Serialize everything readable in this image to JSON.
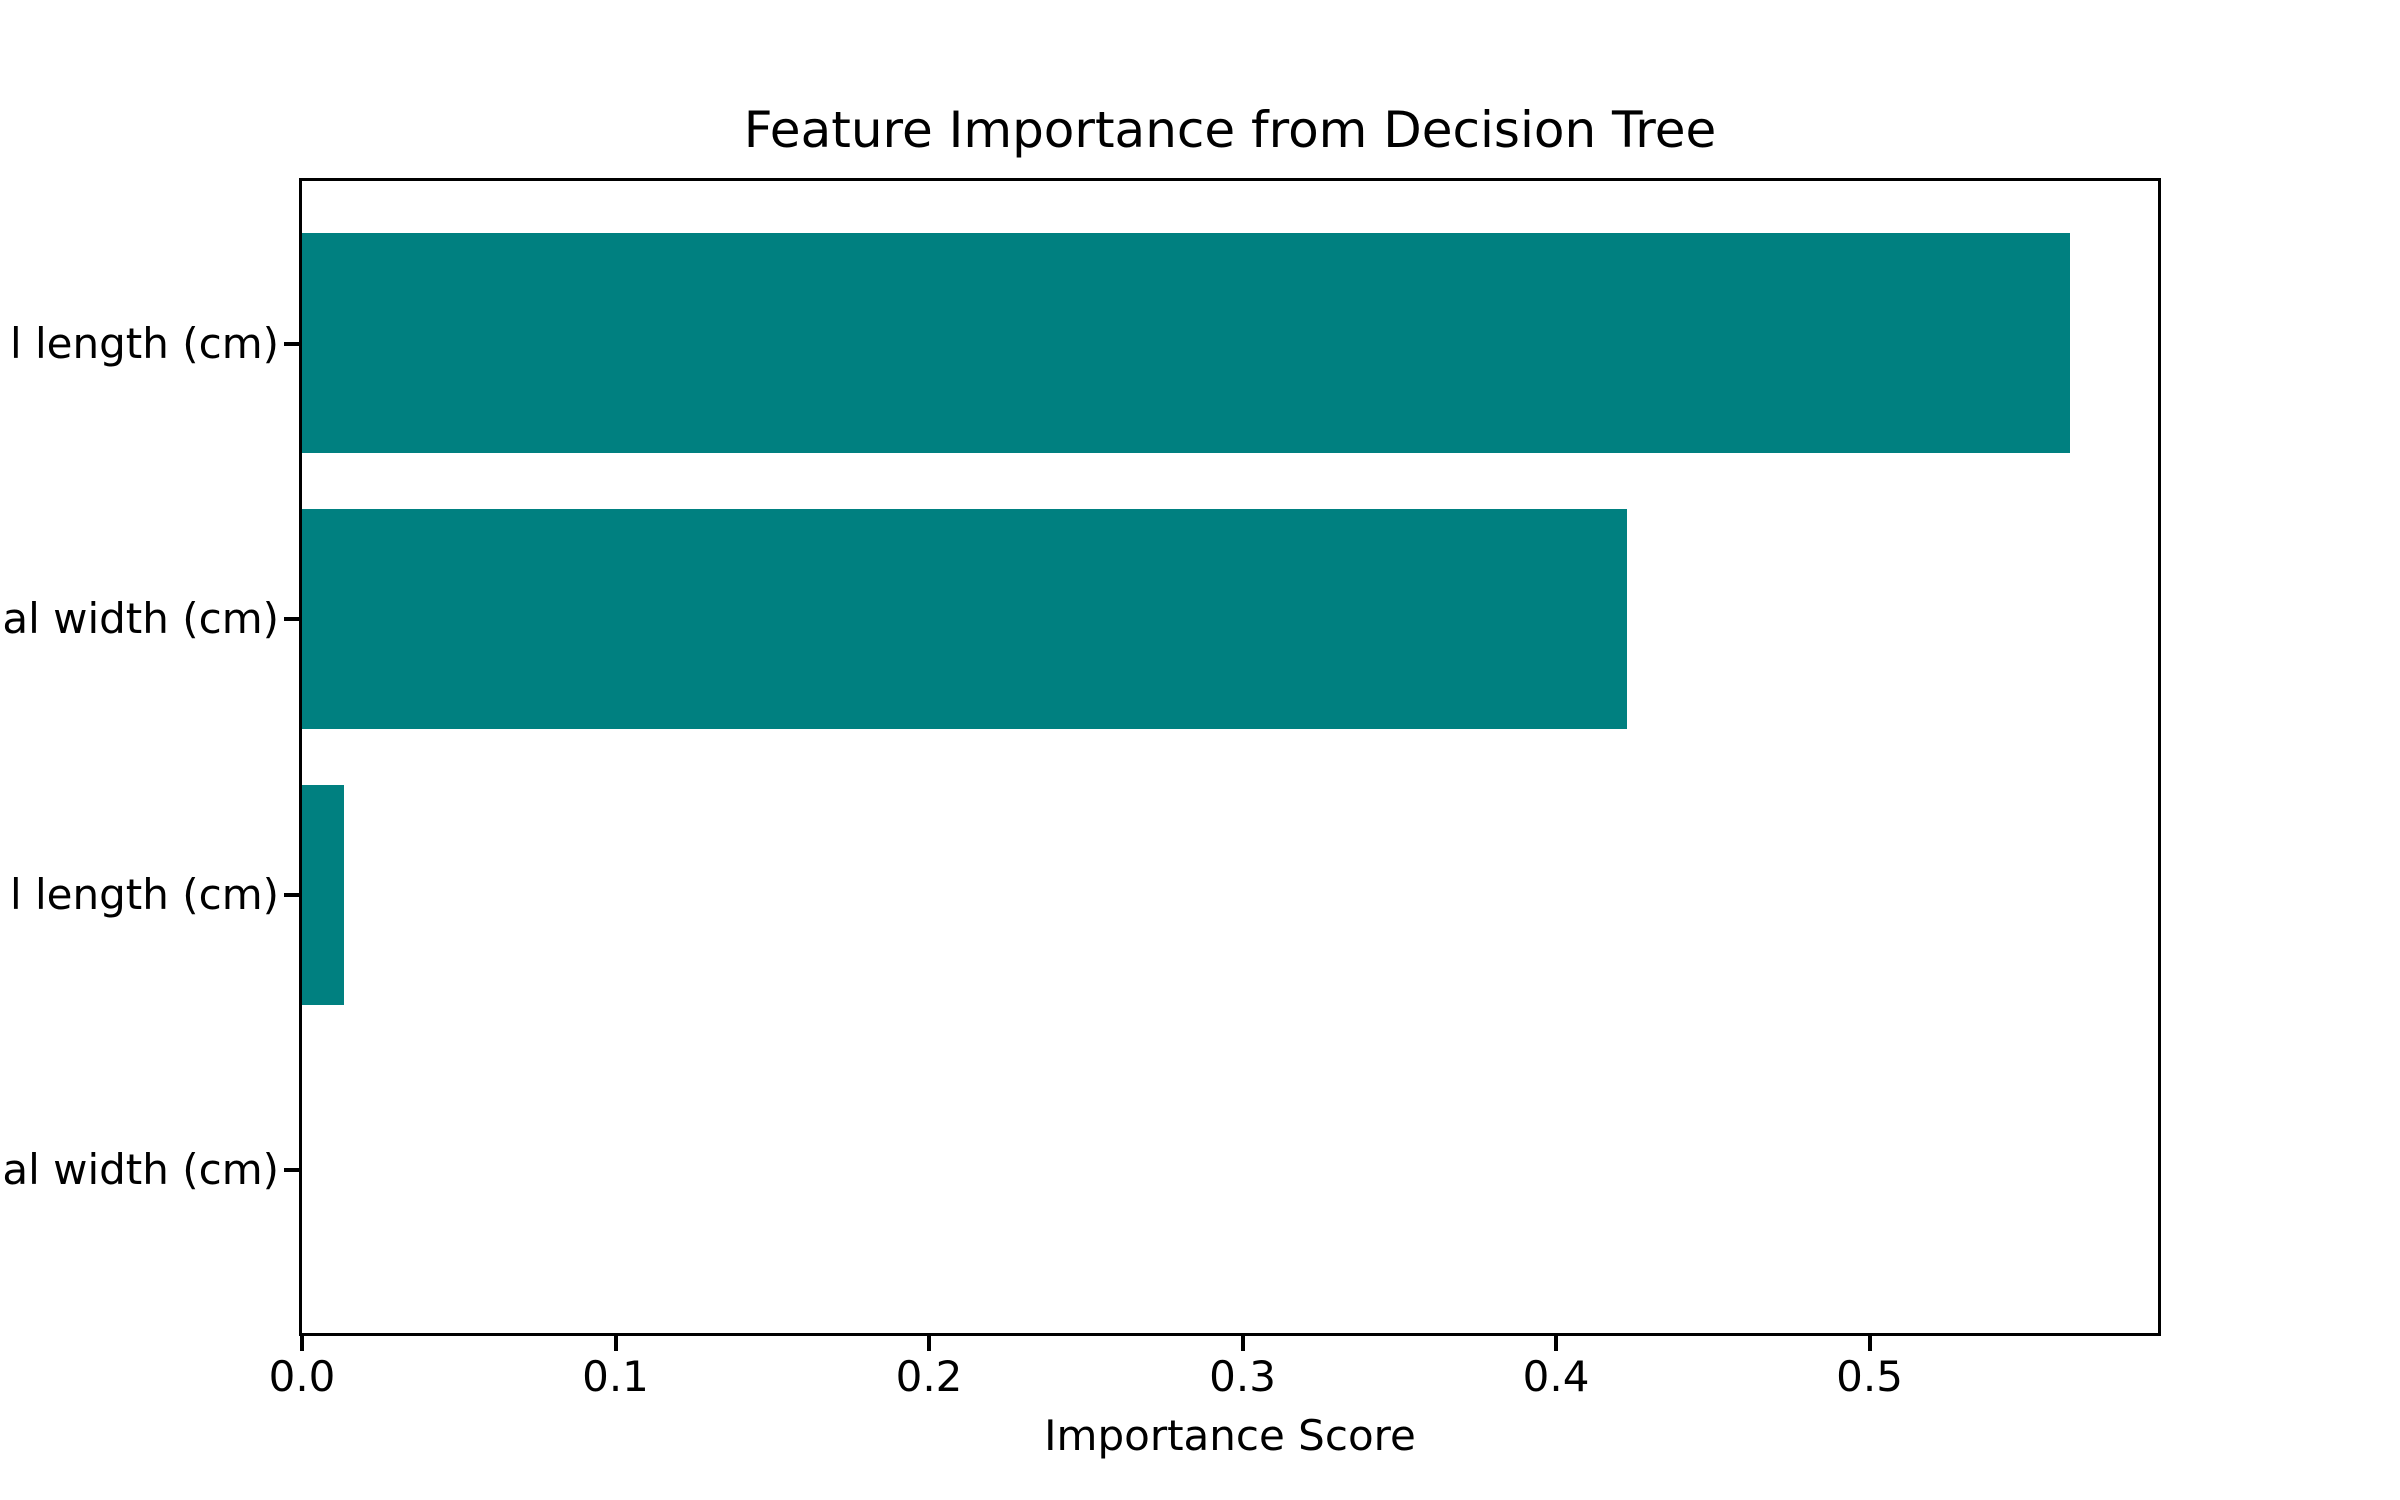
{
  "figure": {
    "background": "#ffffff"
  },
  "chart_data": {
    "type": "bar",
    "orientation": "horizontal",
    "title": "Feature Importance from Decision Tree",
    "xlabel": "Importance Score",
    "ylabel": "",
    "categories": [
      "l length (cm)",
      "al width (cm)",
      "l length (cm)",
      "al width (cm)"
    ],
    "categories_note": "y tick labels are clipped by the left edge of the image",
    "values": [
      0.564,
      0.4226,
      0.0133,
      0.0
    ],
    "xticks_labels": [
      "0.0",
      "0.1",
      "0.2",
      "0.3",
      "0.4",
      "0.5"
    ],
    "xticks_values": [
      0.0,
      0.1,
      0.2,
      0.3,
      0.4,
      0.5
    ],
    "xlim": [
      0,
      0.592
    ],
    "bar_color": "#008080",
    "axis_color": "#000000",
    "text_color": "#000000",
    "grid": false,
    "legend": "none"
  }
}
